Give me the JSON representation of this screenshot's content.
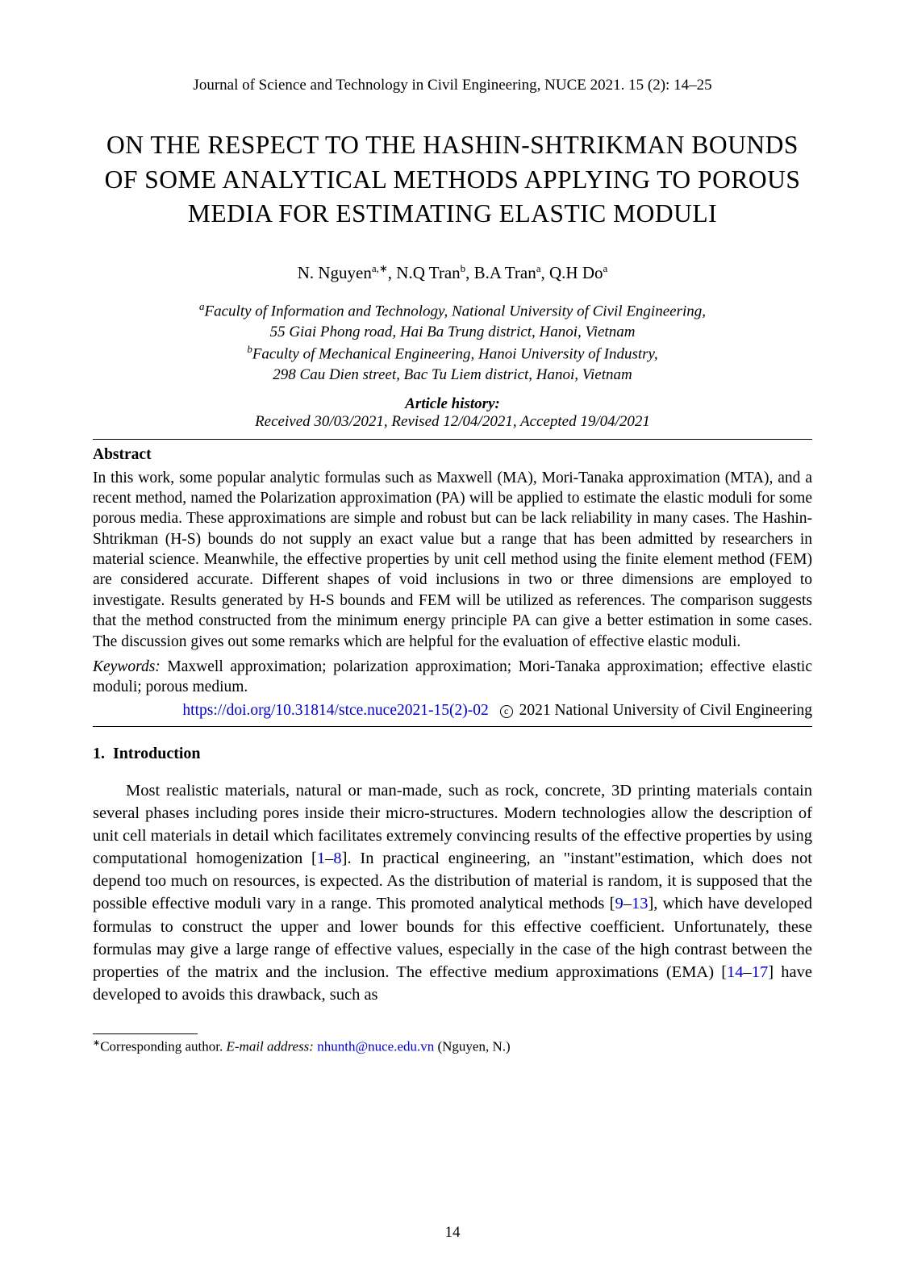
{
  "journal_header": "Journal of Science and Technology in Civil Engineering, NUCE 2021. 15 (2): 14–25",
  "title": "ON THE RESPECT TO THE HASHIN-SHTRIKMAN BOUNDS OF SOME ANALYTICAL METHODS APPLYING TO POROUS MEDIA FOR ESTIMATING ELASTIC MODULI",
  "authors": [
    {
      "name": "N. Nguyen",
      "sup": "a,∗"
    },
    {
      "name": "N.Q Tran",
      "sup": "b"
    },
    {
      "name": "B.A Tran",
      "sup": "a"
    },
    {
      "name": "Q.H Do",
      "sup": "a"
    }
  ],
  "affiliations": [
    {
      "sup": "a",
      "line1": "Faculty of Information and Technology, National University of Civil Engineering,",
      "line2": "55 Giai Phong road, Hai Ba Trung district, Hanoi, Vietnam"
    },
    {
      "sup": "b",
      "line1": "Faculty of Mechanical Engineering, Hanoi University of Industry,",
      "line2": "298 Cau Dien street, Bac Tu Liem district, Hanoi, Vietnam"
    }
  ],
  "history": {
    "label": "Article history:",
    "dates": "Received 30/03/2021, Revised 12/04/2021, Accepted 19/04/2021"
  },
  "abstract": {
    "heading": "Abstract",
    "text": "In this work, some popular analytic formulas such as Maxwell (MA), Mori-Tanaka approximation (MTA), and a recent method, named the Polarization approximation (PA) will be applied to estimate the elastic moduli for some porous media. These approximations are simple and robust but can be lack reliability in many cases. The Hashin-Shtrikman (H-S) bounds do not supply an exact value but a range that has been admitted by researchers in material science. Meanwhile, the effective properties by unit cell method using the finite element method (FEM) are considered accurate. Different shapes of void inclusions in two or three dimensions are employed to investigate. Results generated by H-S bounds and FEM will be utilized as references. The comparison suggests that the method constructed from the minimum energy principle PA can give a better estimation in some cases. The discussion gives out some remarks which are helpful for the evaluation of effective elastic moduli."
  },
  "keywords": {
    "label": "Keywords:",
    "text": " Maxwell approximation; polarization approximation; Mori-Tanaka approximation; effective elastic moduli; porous medium."
  },
  "doi": {
    "url": "https://doi.org/10.31814/stce.nuce2021-15(2)-02",
    "copyright": "2021 National University of Civil Engineering"
  },
  "section": {
    "number": "1.",
    "title": "Introduction"
  },
  "body": {
    "p1_a": "Most realistic materials, natural or man-made, such as rock, concrete, 3D printing materials contain several phases including pores inside their micro-structures. Modern technologies allow the description of unit cell materials in detail which facilitates extremely convincing results of the effective properties by using computational homogenization [",
    "ref1a": "1",
    "p1_dash1": "–",
    "ref1b": "8",
    "p1_b": "]. In practical engineering, an \"instant\"estimation, which does not depend too much on resources, is expected. As the distribution of material is random, it is supposed that the possible effective moduli vary in a range. This promoted analytical methods [",
    "ref2a": "9",
    "p1_dash2": "–",
    "ref2b": "13",
    "p1_c": "], which have developed formulas to construct the upper and lower bounds for this effective coefficient. Unfortunately, these formulas may give a large range of effective values, especially in the case of the high contrast between the properties of the matrix and the inclusion. The effective medium approximations (EMA) [",
    "ref3a": "14",
    "p1_dash3": "–",
    "ref3b": "17",
    "p1_d": "] have developed to avoids this drawback, such as"
  },
  "footnote": {
    "mark": "∗",
    "label_a": "Corresponding author. ",
    "label_b": "E-mail address:",
    "email": "nhunth@nuce.edu.vn",
    "tail": " (Nguyen, N.)"
  },
  "page_number": "14",
  "colors": {
    "text": "#000000",
    "link": "#0000cc",
    "background": "#ffffff"
  },
  "typography": {
    "base_font": "Times New Roman",
    "title_fontsize": 31.5,
    "body_fontsize": 20.5,
    "abstract_fontsize": 19.5,
    "header_fontsize": 19
  }
}
